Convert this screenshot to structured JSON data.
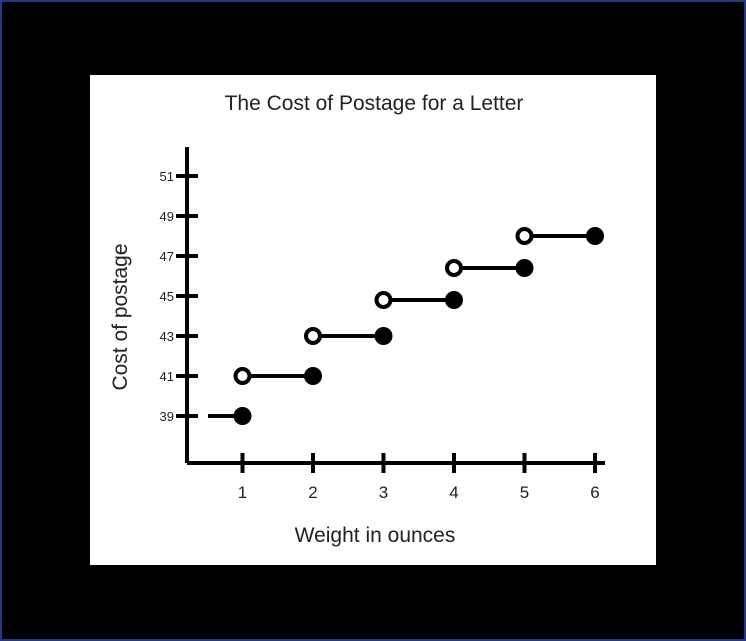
{
  "chart_data": {
    "type": "step",
    "title": "The Cost of Postage for a Letter",
    "xlabel": "Weight in ounces",
    "ylabel": "Cost of postage",
    "x_ticks": [
      1,
      2,
      3,
      4,
      5,
      6
    ],
    "y_ticks": [
      39,
      41,
      43,
      45,
      47,
      49,
      51
    ],
    "grid": false,
    "series": [
      {
        "segments": [
          {
            "x_start": 0,
            "x_end": 1,
            "y": 39,
            "start_closed": false,
            "end_closed": true
          },
          {
            "x_start": 1,
            "x_end": 2,
            "y": 41,
            "start_closed": false,
            "end_closed": true
          },
          {
            "x_start": 2,
            "x_end": 3,
            "y": 43,
            "start_closed": false,
            "end_closed": true
          },
          {
            "x_start": 3,
            "x_end": 4,
            "y": 44.8,
            "start_closed": false,
            "end_closed": true
          },
          {
            "x_start": 4,
            "x_end": 5,
            "y": 46.4,
            "start_closed": false,
            "end_closed": true
          },
          {
            "x_start": 5,
            "x_end": 6,
            "y": 48,
            "start_closed": false,
            "end_closed": true
          }
        ]
      }
    ],
    "colors": {
      "line": "#000000",
      "background": "#ffffff",
      "page": "#000000",
      "border": "#1f3a8a"
    }
  }
}
